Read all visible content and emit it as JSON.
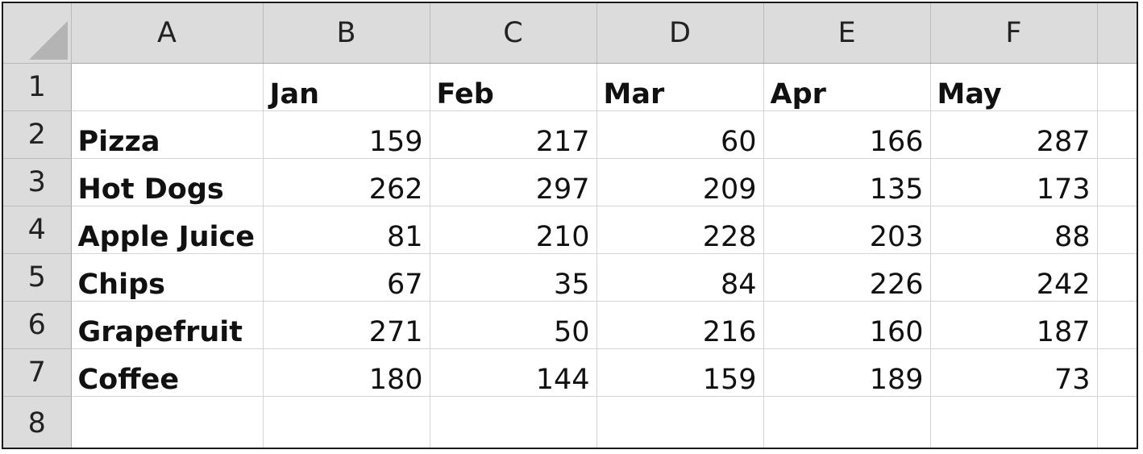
{
  "columns": [
    "A",
    "B",
    "C",
    "D",
    "E",
    "F"
  ],
  "row_numbers": [
    "1",
    "2",
    "3",
    "4",
    "5",
    "6",
    "7",
    "8"
  ],
  "months": [
    "Jan",
    "Feb",
    "Mar",
    "Apr",
    "May"
  ],
  "rows": [
    {
      "label": "Pizza",
      "values": [
        "159",
        "217",
        "60",
        "166",
        "287"
      ]
    },
    {
      "label": "Hot Dogs",
      "values": [
        "262",
        "297",
        "209",
        "135",
        "173"
      ]
    },
    {
      "label": "Apple Juice",
      "values": [
        "81",
        "210",
        "228",
        "203",
        "88"
      ]
    },
    {
      "label": "Chips",
      "values": [
        "67",
        "35",
        "84",
        "226",
        "242"
      ]
    },
    {
      "label": "Grapefruit",
      "values": [
        "271",
        "50",
        "216",
        "160",
        "187"
      ]
    },
    {
      "label": "Coffee",
      "values": [
        "180",
        "144",
        "159",
        "189",
        "73"
      ]
    }
  ],
  "colors": {
    "header_bg": "#dcdcdc",
    "gridline": "#d4d4d4",
    "border": "#1a1a1a"
  }
}
